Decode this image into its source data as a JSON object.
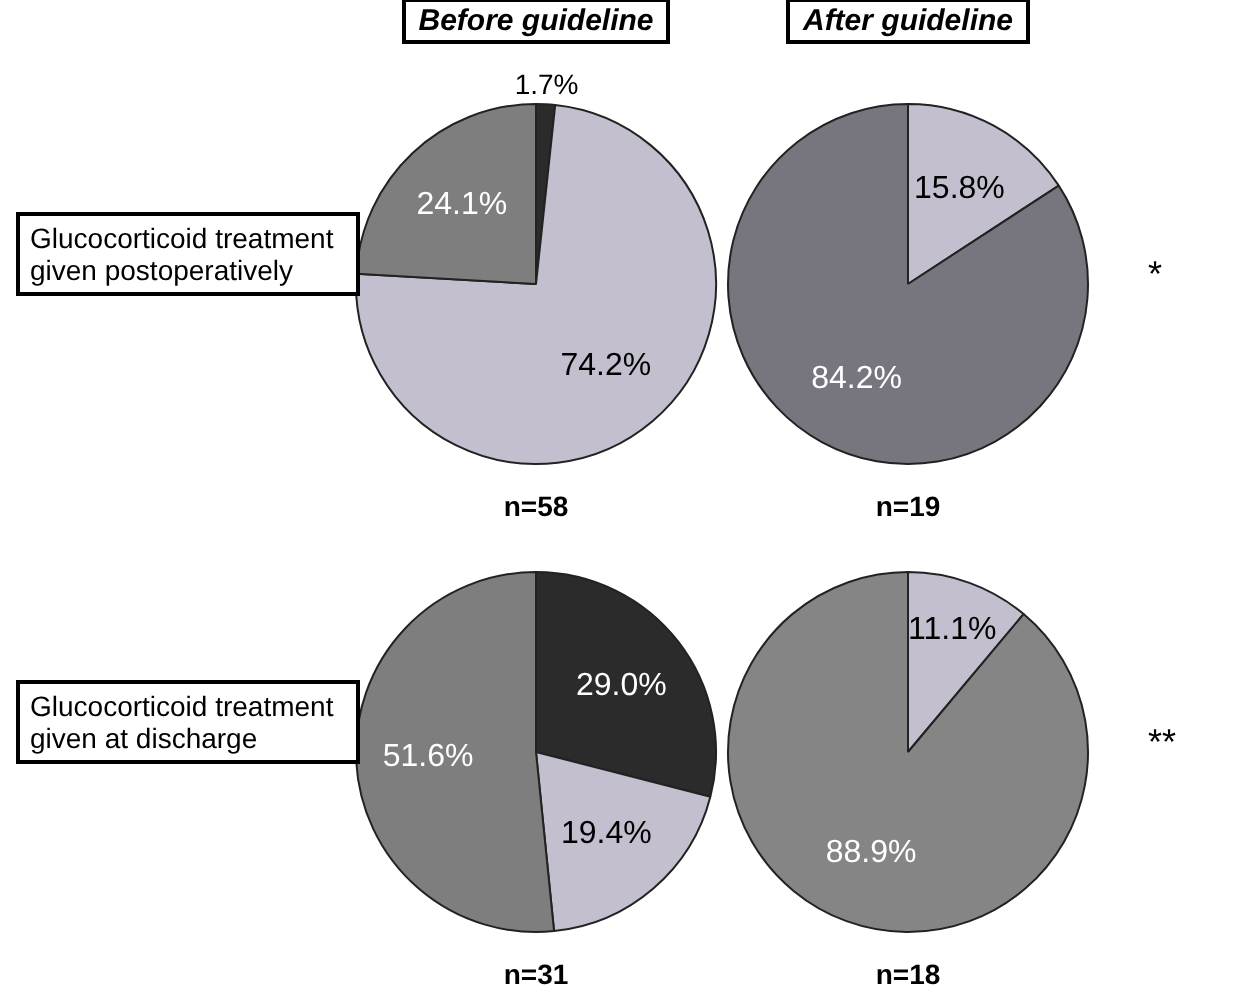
{
  "chart_data": [
    {
      "type": "pie",
      "title": "Before guideline",
      "ylabel": "Glucocorticoid treatment given postoperatively",
      "xlabel": "n=58",
      "categories": [
        null,
        null,
        null
      ],
      "values": [
        1.7,
        74.2,
        24.1
      ],
      "value_labels": [
        "1.7%",
        "74.2%",
        "24.1%"
      ],
      "colors": [
        "#2b2b2b",
        "#c3bfce",
        "#7e7e7e"
      ]
    },
    {
      "type": "pie",
      "title": "After guideline",
      "xlabel": "n=19",
      "annotations": [
        "*"
      ],
      "categories": [
        null,
        null
      ],
      "values": [
        15.8,
        84.2
      ],
      "value_labels": [
        "15.8%",
        "84.2%"
      ],
      "colors": [
        "#c3bfce",
        "#77767e"
      ]
    },
    {
      "type": "pie",
      "ylabel": "Glucocorticoid treatment given at discharge",
      "xlabel": "n=31",
      "categories": [
        null,
        null,
        null
      ],
      "values": [
        29.0,
        19.4,
        51.6
      ],
      "value_labels": [
        "29.0%",
        "19.4%",
        "51.6%"
      ],
      "colors": [
        "#2b2b2b",
        "#c3bfce",
        "#7e7e7e"
      ]
    },
    {
      "type": "pie",
      "xlabel": "n=18",
      "annotations": [
        "**"
      ],
      "categories": [
        null,
        null
      ],
      "values": [
        11.1,
        88.9
      ],
      "value_labels": [
        "11.1%",
        "88.9%"
      ],
      "colors": [
        "#c3bfce",
        "#858585"
      ]
    }
  ]
}
